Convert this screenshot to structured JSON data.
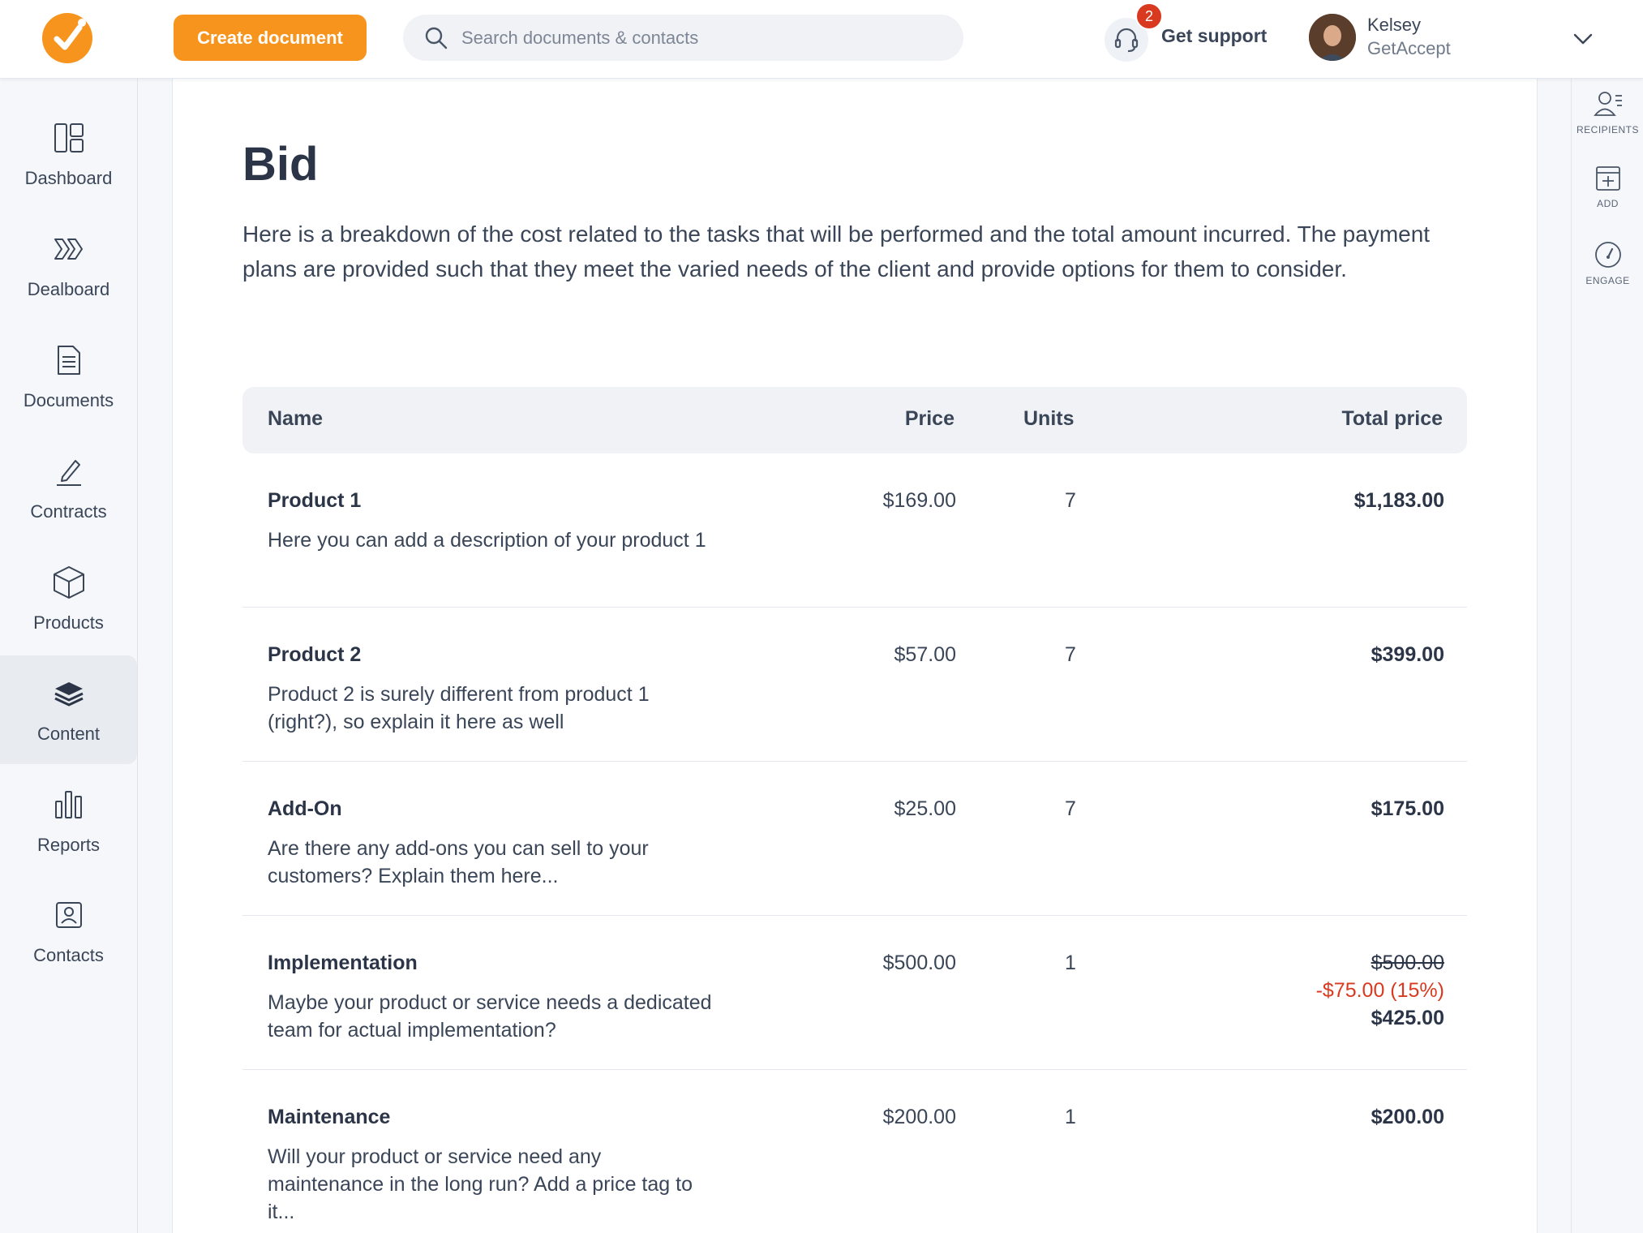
{
  "header": {
    "create_label": "Create document",
    "search_placeholder": "Search documents & contacts",
    "support_badge": "2",
    "support_label": "Get support",
    "user_name": "Kelsey",
    "user_org": "GetAccept"
  },
  "sidebar": {
    "items": [
      {
        "label": "Dashboard",
        "icon": "dashboard-icon"
      },
      {
        "label": "Dealboard",
        "icon": "dealboard-icon"
      },
      {
        "label": "Documents",
        "icon": "document-icon"
      },
      {
        "label": "Contracts",
        "icon": "pen-icon"
      },
      {
        "label": "Products",
        "icon": "box-icon"
      },
      {
        "label": "Content",
        "icon": "layers-icon",
        "active": true
      },
      {
        "label": "Reports",
        "icon": "bar-chart-icon"
      },
      {
        "label": "Contacts",
        "icon": "contact-card-icon"
      }
    ]
  },
  "document": {
    "title": "Bid",
    "intro": "Here is a breakdown of the cost related to the tasks that will be performed and the total amount incurred. The payment plans are provided such that they meet the varied needs of the client and provide options for them to consider.",
    "columns": {
      "name": "Name",
      "price": "Price",
      "units": "Units",
      "total": "Total price"
    },
    "rows": [
      {
        "name": "Product 1",
        "description": "Here you can add a description of your product 1",
        "price": "$169.00",
        "units": "7",
        "total": "$1,183.00"
      },
      {
        "name": "Product 2",
        "description": "Product 2 is surely different from product 1 (right?), so explain it here as well",
        "price": "$57.00",
        "units": "7",
        "total": "$399.00"
      },
      {
        "name": "Add-On",
        "description": "Are there any add-ons you can sell to your customers? Explain them here...",
        "price": "$25.00",
        "units": "7",
        "total": "$175.00"
      },
      {
        "name": "Implementation",
        "description": "Maybe your product or service needs a dedicated team for actual implementation?",
        "price": "$500.00",
        "units": "1",
        "original_total": "$500.00",
        "discount": "-$75.00 (15%)",
        "total": "$425.00"
      },
      {
        "name": "Maintenance",
        "description": "Will your product or service need any maintenance in the long run? Add a price tag to it...",
        "price": "$200.00",
        "units": "1",
        "total": "$200.00"
      }
    ]
  },
  "right_panel": {
    "items": [
      {
        "label": "RECIPIENTS",
        "icon": "recipients-icon"
      },
      {
        "label": "ADD",
        "icon": "add-block-icon"
      },
      {
        "label": "ENGAGE",
        "icon": "gauge-icon"
      }
    ]
  },
  "colors": {
    "accent": "#f7941d",
    "discount": "#d93a1f",
    "badge": "#d93a1f"
  }
}
